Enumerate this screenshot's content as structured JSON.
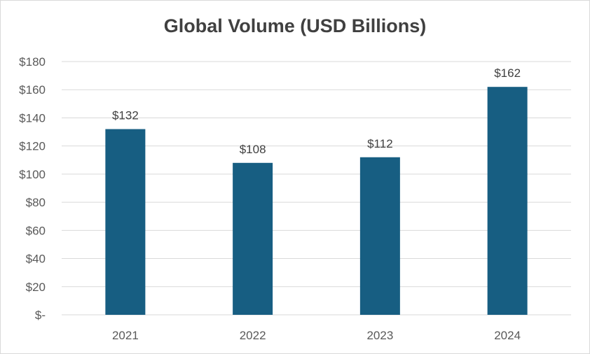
{
  "chart_data": {
    "type": "bar",
    "title": "Global Volume (USD Billions)",
    "categories": [
      "2021",
      "2022",
      "2023",
      "2024"
    ],
    "values": [
      132,
      108,
      112,
      162
    ],
    "data_labels": [
      "$132",
      "$108",
      "$112",
      "$162"
    ],
    "ylim": [
      0,
      180
    ],
    "yticks": [
      0,
      20,
      40,
      60,
      80,
      100,
      120,
      140,
      160,
      180
    ],
    "ytick_labels": [
      "$-",
      "$20",
      "$40",
      "$60",
      "$80",
      "$100",
      "$120",
      "$140",
      "$160",
      "$180"
    ],
    "grid": true,
    "legend": "none",
    "bar_color": "#175E82",
    "grid_color": "#d9d9d9"
  }
}
